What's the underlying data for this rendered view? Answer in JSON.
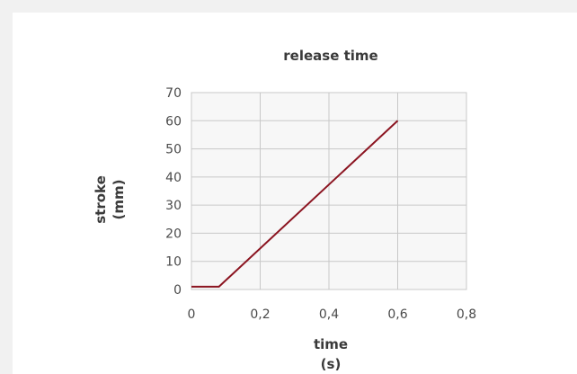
{
  "chart_data": {
    "type": "line",
    "title": "release time",
    "xlabel": "time",
    "xunit": "(s)",
    "ylabel": "stroke",
    "yunit": "(mm)",
    "xlim": [
      0,
      0.8
    ],
    "ylim": [
      0,
      70
    ],
    "xticks": [
      0,
      0.2,
      0.4,
      0.6,
      0.8
    ],
    "yticks": [
      0,
      10,
      20,
      30,
      40,
      50,
      60,
      70
    ],
    "xtick_labels": [
      "0",
      "0,2",
      "0,4",
      "0,6",
      "0,8"
    ],
    "ytick_labels": [
      "0",
      "10",
      "20",
      "30",
      "40",
      "50",
      "60",
      "70"
    ],
    "grid": true,
    "series": [
      {
        "color": "#8b1420",
        "x": [
          0,
          0.08,
          0.6
        ],
        "y": [
          1,
          1,
          60
        ]
      }
    ]
  },
  "colors": {
    "line": "#8b1420",
    "grid": "#c8c8c8",
    "plot_background": "#f7f7f7",
    "page_background": "#f1f1f1",
    "card_background": "#ffffff"
  }
}
